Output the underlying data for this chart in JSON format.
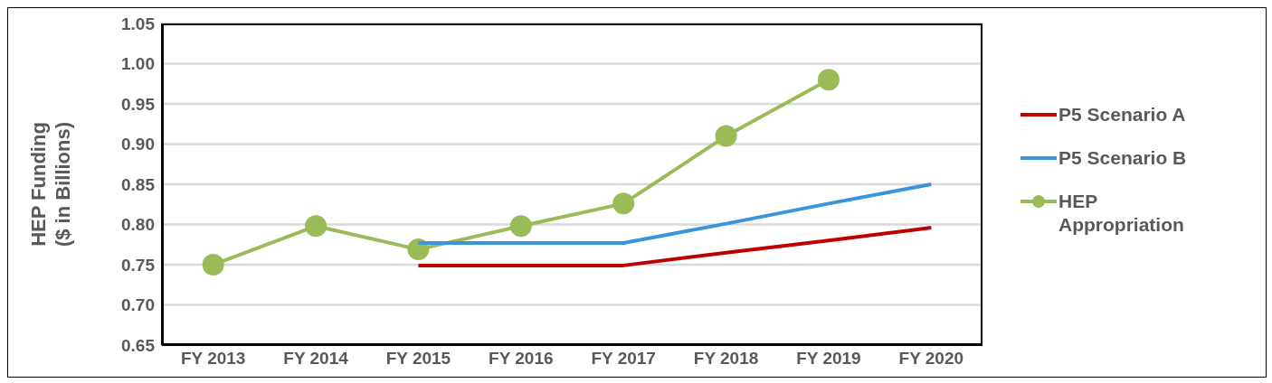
{
  "chart_data": {
    "type": "line",
    "ylabel": "HEP Funding ($ in Billions)",
    "categories": [
      "FY 2013",
      "FY 2014",
      "FY 2015",
      "FY 2016",
      "FY 2017",
      "FY 2018",
      "FY 2019",
      "FY 2020"
    ],
    "series": [
      {
        "name": "P5 Scenario A",
        "color": "#c00000",
        "marker": "none",
        "values": [
          null,
          null,
          0.749,
          0.749,
          0.749,
          0.765,
          0.78,
          0.796
        ]
      },
      {
        "name": "P5 Scenario B",
        "color": "#3a95dd",
        "marker": "none",
        "values": [
          null,
          null,
          0.777,
          0.777,
          0.777,
          0.801,
          0.826,
          0.85
        ]
      },
      {
        "name": "HEP Appropriation",
        "color": "#9bbb59",
        "marker": "circle",
        "values": [
          0.75,
          0.798,
          0.769,
          0.798,
          0.826,
          0.91,
          0.98,
          null
        ]
      }
    ],
    "ylim": [
      0.65,
      1.05
    ],
    "yticks": [
      {
        "value": 0.65,
        "label": "0.65"
      },
      {
        "value": 0.7,
        "label": "0.70"
      },
      {
        "value": 0.75,
        "label": "0.75"
      },
      {
        "value": 0.8,
        "label": "0.80"
      },
      {
        "value": 0.85,
        "label": "0.85"
      },
      {
        "value": 0.9,
        "label": "0.90"
      },
      {
        "value": 0.95,
        "label": "0.95"
      },
      {
        "value": 1,
        "label": "1.00"
      },
      {
        "value": 1.05,
        "label": "1.05"
      }
    ],
    "grid": "y",
    "legend": "right"
  }
}
